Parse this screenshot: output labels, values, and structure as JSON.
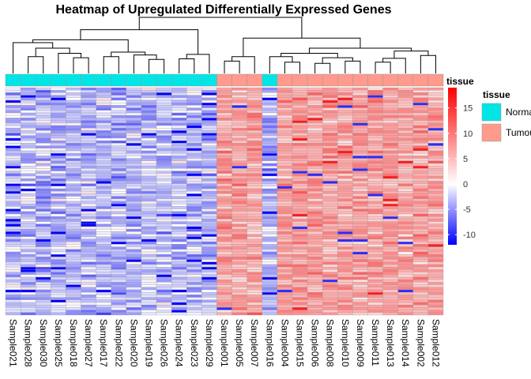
{
  "chart_data": {
    "type": "heatmap",
    "title": "Heatmap of Upregulated Differentially Expressed Genes",
    "samples": [
      "Sample021",
      "Sample028",
      "Sample030",
      "Sample025",
      "Sample018",
      "Sample027",
      "Sample017",
      "Sample022",
      "Sample020",
      "Sample019",
      "Sample026",
      "Sample024",
      "Sample023",
      "Sample029",
      "Sample001",
      "Sample005",
      "Sample007",
      "Sample016",
      "Sample004",
      "Sample015",
      "Sample006",
      "Sample008",
      "Sample010",
      "Sample009",
      "Sample011",
      "Sample013",
      "Sample014",
      "Sample002",
      "Sample012"
    ],
    "tissue": [
      "Normal",
      "Normal",
      "Normal",
      "Normal",
      "Normal",
      "Normal",
      "Normal",
      "Normal",
      "Normal",
      "Normal",
      "Normal",
      "Normal",
      "Normal",
      "Normal",
      "Tumour",
      "Tumour",
      "Tumour",
      "Normal",
      "Tumour",
      "Tumour",
      "Tumour",
      "Tumour",
      "Tumour",
      "Tumour",
      "Tumour",
      "Tumour",
      "Tumour",
      "Tumour",
      "Tumour"
    ],
    "annotation_track_label": "tissue",
    "annotation_legend": {
      "title": "tissue",
      "entries": [
        {
          "name": "Normal",
          "color": "#00E5E5"
        },
        {
          "name": "Tumour",
          "color": "#FF9A8C"
        }
      ]
    },
    "color_scale": {
      "low": "#0000FF",
      "mid": "#FFFFFF",
      "high": "#FF0000",
      "range": [
        -12,
        19
      ],
      "ticks": [
        -10,
        -5,
        0,
        5,
        10,
        15
      ]
    },
    "n_genes": 90,
    "column_dendrogram": true,
    "row_dendrogram": false,
    "column_groups": {
      "normal_cluster_mean": -3,
      "tumour_cluster_mean": 7
    }
  }
}
